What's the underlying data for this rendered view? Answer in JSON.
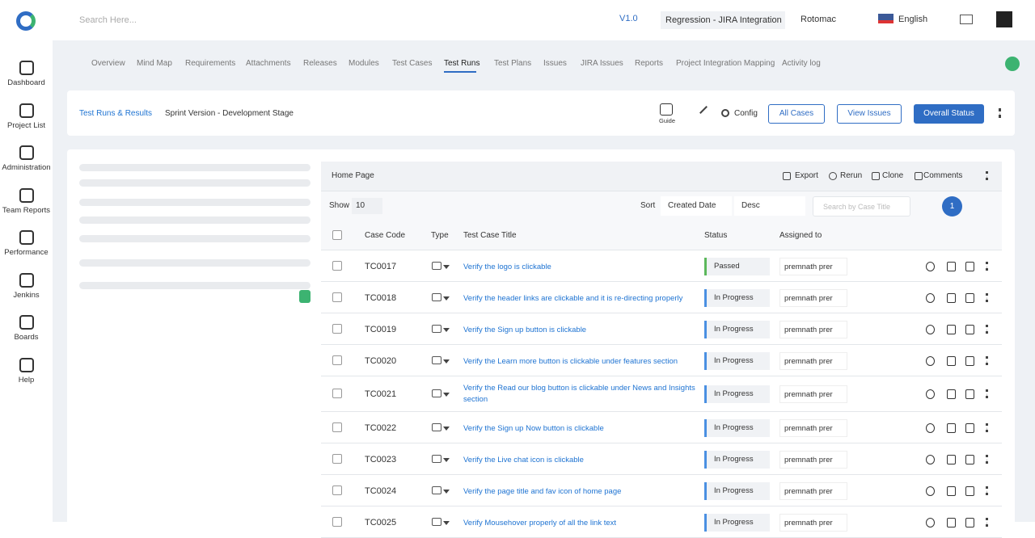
{
  "header": {
    "search_placeholder": "Search Here...",
    "version": "V1.0",
    "project": "Regression - JIRA Integration",
    "user": "Rotomac",
    "language": "English"
  },
  "sidebar": [
    "Dashboard",
    "Project List",
    "Administration",
    "Team Reports",
    "Performance",
    "Jenkins",
    "Boards",
    "Help"
  ],
  "tabs": [
    "Overview",
    "Mind Map",
    "Requirements",
    "Attachments",
    "Releases",
    "Modules",
    "Test Cases",
    "Test Runs",
    "Test Plans",
    "Issues",
    "JIRA Issues",
    "Reports",
    "Project Integration Mapping",
    "Activity log"
  ],
  "breadcrumb": [
    "Test Runs & Results",
    "Sprint Version - Development Stage"
  ],
  "toolbar": {
    "guide": "Guide",
    "config": "Config",
    "buttons": [
      "All Cases",
      "View Issues",
      "Overall Status"
    ]
  },
  "panel": {
    "title": "Home Page",
    "actions": [
      "Export",
      "Rerun",
      "Clone",
      "Comments"
    ]
  },
  "controls": {
    "show_label": "Show",
    "show_value": "10",
    "sort_label": "Sort",
    "sort_field": "Created Date",
    "sort_order": "Desc",
    "search_placeholder": "Search by Case Title",
    "page": 1
  },
  "table": {
    "columns": [
      "Case Code",
      "Type",
      "Test Case Title",
      "Status",
      "Assigned to"
    ],
    "rows": [
      {
        "code": "TC0017",
        "title": "Verify the logo is clickable",
        "status": "Passed",
        "status_color": "#5cb85c",
        "assignee": "premnath prer"
      },
      {
        "code": "TC0018",
        "title": "Verify the header links are clickable and it is re-directing properly",
        "status": "In Progress",
        "status_color": "#4a90e2",
        "assignee": "premnath prer"
      },
      {
        "code": "TC0019",
        "title": "Verify the Sign up button is clickable",
        "status": "In Progress",
        "status_color": "#4a90e2",
        "assignee": "premnath prer"
      },
      {
        "code": "TC0020",
        "title": "Verify the Learn more button is clickable under features section",
        "status": "In Progress",
        "status_color": "#4a90e2",
        "assignee": "premnath prer"
      },
      {
        "code": "TC0021",
        "title": "Verify the Read our blog button is clickable under News and Insights section",
        "status": "In Progress",
        "status_color": "#4a90e2",
        "assignee": "premnath prer"
      },
      {
        "code": "TC0022",
        "title": "Verify the Sign up Now button is clickable",
        "status": "In Progress",
        "status_color": "#4a90e2",
        "assignee": "premnath prer"
      },
      {
        "code": "TC0023",
        "title": "Verify the Live chat icon is clickable",
        "status": "In Progress",
        "status_color": "#4a90e2",
        "assignee": "premnath prer"
      },
      {
        "code": "TC0024",
        "title": "Verify the page title and fav icon of home page",
        "status": "In Progress",
        "status_color": "#4a90e2",
        "assignee": "premnath prer"
      },
      {
        "code": "TC0025",
        "title": "Verify Mousehover properly of all the link text",
        "status": "In Progress",
        "status_color": "#4a90e2",
        "assignee": "premnath prer"
      }
    ]
  }
}
